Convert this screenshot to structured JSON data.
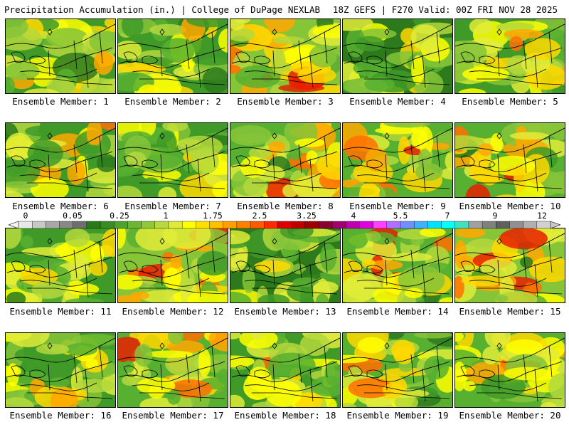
{
  "header": {
    "title_left": "Precipitation Accumulation (in.) | College of DuPage NEXLAB",
    "title_right": "18Z GEFS | F270 Valid: 00Z FRI NOV 28 2025"
  },
  "colorbar": {
    "tick_labels": [
      "0",
      "0.05",
      "0.25",
      "1",
      "1.75",
      "2.5",
      "3.25",
      "4",
      "5.5",
      "7",
      "9",
      "12"
    ],
    "colors": [
      "#e8e8e8",
      "#c8c8c8",
      "#a8a8a8",
      "#888888",
      "#6e6e6e",
      "#2a7a1a",
      "#3a8c22",
      "#4ea22e",
      "#6cb634",
      "#90c83a",
      "#b8d83e",
      "#e0ea3a",
      "#ffff00",
      "#ffe000",
      "#ffc000",
      "#ffa000",
      "#ff8000",
      "#ff5a00",
      "#ff2a00",
      "#e00000",
      "#c00000",
      "#a00000",
      "#8a0030",
      "#a00070",
      "#c000b0",
      "#e000e0",
      "#ff40ff",
      "#b070ff",
      "#7090ff",
      "#40b0ff",
      "#00e0ff",
      "#00ffff",
      "#40e0c0",
      "#a0a0a0",
      "#808080",
      "#606060",
      "#909090",
      "#b0b0b0",
      "#d0d0d0"
    ]
  },
  "members": [
    {
      "label": "Ensemble Member: 1",
      "wet": 0.35,
      "seed": 1
    },
    {
      "label": "Ensemble Member: 2",
      "wet": 0.25,
      "seed": 2
    },
    {
      "label": "Ensemble Member: 3",
      "wet": 0.65,
      "seed": 3
    },
    {
      "label": "Ensemble Member: 4",
      "wet": 0.15,
      "seed": 4
    },
    {
      "label": "Ensemble Member: 5",
      "wet": 0.3,
      "seed": 5
    },
    {
      "label": "Ensemble Member: 6",
      "wet": 0.35,
      "seed": 6
    },
    {
      "label": "Ensemble Member: 7",
      "wet": 0.2,
      "seed": 7
    },
    {
      "label": "Ensemble Member: 8",
      "wet": 0.4,
      "seed": 8
    },
    {
      "label": "Ensemble Member: 9",
      "wet": 0.4,
      "seed": 9
    },
    {
      "label": "Ensemble Member: 10",
      "wet": 0.5,
      "seed": 10
    },
    {
      "label": "Ensemble Member: 11",
      "wet": 0.2,
      "seed": 11
    },
    {
      "label": "Ensemble Member: 12",
      "wet": 0.6,
      "seed": 12
    },
    {
      "label": "Ensemble Member: 13",
      "wet": 0.15,
      "seed": 13
    },
    {
      "label": "Ensemble Member: 14",
      "wet": 0.45,
      "seed": 14
    },
    {
      "label": "Ensemble Member: 15",
      "wet": 0.55,
      "seed": 15
    },
    {
      "label": "Ensemble Member: 16",
      "wet": 0.3,
      "seed": 16
    },
    {
      "label": "Ensemble Member: 17",
      "wet": 0.45,
      "seed": 17
    },
    {
      "label": "Ensemble Member: 18",
      "wet": 0.3,
      "seed": 18
    },
    {
      "label": "Ensemble Member: 19",
      "wet": 0.4,
      "seed": 19
    },
    {
      "label": "Ensemble Member: 20",
      "wet": 0.5,
      "seed": 20
    }
  ]
}
